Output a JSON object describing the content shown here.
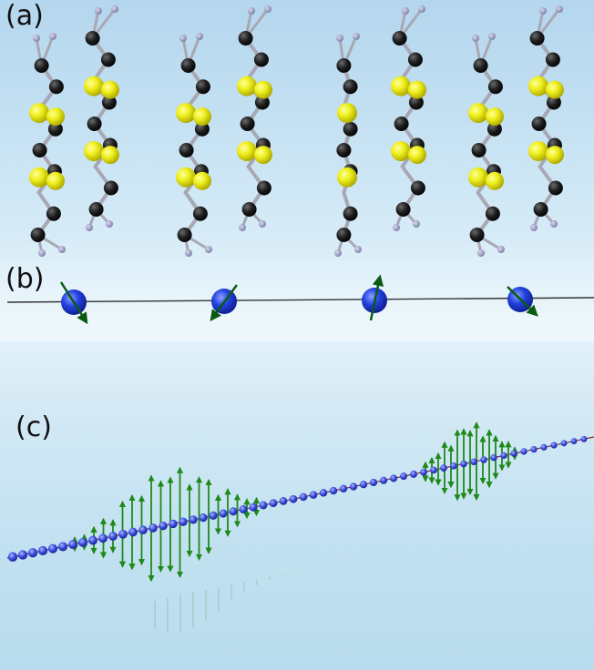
{
  "panels": {
    "a": {
      "label": "(a)",
      "molecule_count": 8
    },
    "b": {
      "label": "(b)",
      "spin_count": 4
    },
    "c": {
      "label": "(c)"
    }
  },
  "colors": {
    "carbon": "#1c1c1c",
    "sulfur": "#ecec18",
    "hydrogen": "#9b9bc4",
    "bond": "#a8a8b4",
    "spin_sphere": "#1f3ad8",
    "spin_arrow": "#0a5a14",
    "chain_atom": "#3a4ad8",
    "wave_arrow": "#1f8a1a",
    "chain_line": "#333333"
  },
  "icons": {
    "spin_arrow": "arrow-icon",
    "wave_arrow": "double-arrow-icon"
  }
}
